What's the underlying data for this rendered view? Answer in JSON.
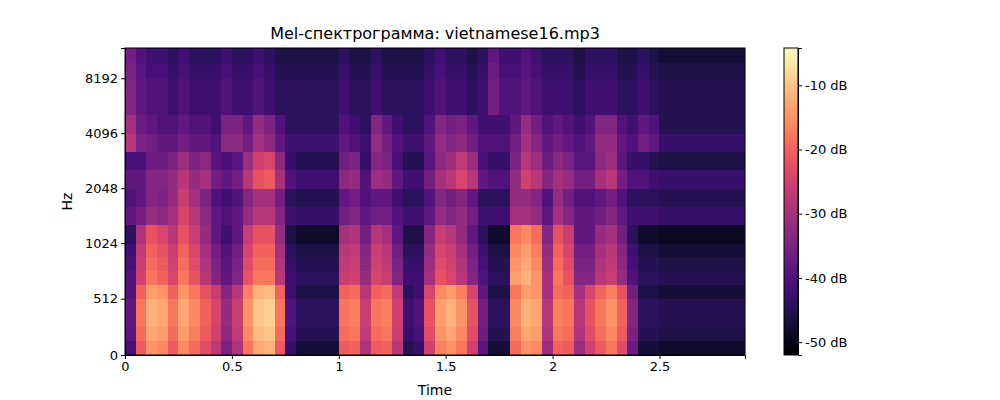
{
  "chart_data": {
    "type": "heatmap",
    "title": "Mel-спектрограмма: vietnamese16.mp3",
    "x_label": "Time",
    "y_label": "Hz",
    "color": "magma",
    "xlim": [
      0,
      2.9
    ],
    "xticks": [
      0,
      0.5,
      1,
      1.5,
      2,
      2.5
    ],
    "ylim": [
      0,
      12000
    ],
    "yticks": [
      0,
      512,
      1024,
      2048,
      4096,
      8192
    ],
    "x_edges": [
      0,
      0.05,
      0.1,
      0.15,
      0.2,
      0.25,
      0.3,
      0.35,
      0.4,
      0.45,
      0.5,
      0.55,
      0.6,
      0.65,
      0.7,
      0.75,
      0.8,
      0.85,
      0.9,
      0.95,
      1,
      1.05,
      1.1,
      1.15,
      1.2,
      1.25,
      1.3,
      1.35,
      1.4,
      1.45,
      1.5,
      1.55,
      1.6,
      1.65,
      1.7,
      1.75,
      1.8,
      1.85,
      1.9,
      1.95,
      2,
      2.05,
      2.1,
      2.15,
      2.2,
      2.25,
      2.3,
      2.35,
      2.4,
      2.45,
      2.5,
      2.55,
      2.6,
      2.65,
      2.7,
      2.75,
      2.8,
      2.85,
      2.9
    ],
    "y_edges": [
      0,
      128,
      256,
      384,
      512,
      640,
      768,
      896,
      1024,
      1290,
      1625,
      2048,
      2580,
      3250,
      4096,
      5160,
      6500,
      8192,
      10000,
      12000
    ],
    "values": [
      [
        -41,
        -21,
        -15,
        -16,
        -21,
        -16,
        -19,
        -23,
        -27,
        -35,
        -29,
        -18,
        -13,
        -12,
        -21,
        -43,
        -47,
        -47,
        -47,
        -47,
        -21,
        -20,
        -29,
        -21,
        -20,
        -28,
        -45,
        -43,
        -25,
        -17,
        -15,
        -18,
        -25,
        -39,
        -47,
        -47,
        -19,
        -15,
        -16,
        -31,
        -20,
        -21,
        -31,
        -25,
        -21,
        -18,
        -23,
        -37,
        -47,
        -47,
        -48,
        -48,
        -48,
        -48,
        -48,
        -48,
        -48,
        -48
      ],
      [
        -39,
        -19,
        -13,
        -14,
        -19,
        -14,
        -17,
        -21,
        -25,
        -33,
        -27,
        -16,
        -11,
        -10,
        -19,
        -41,
        -45,
        -45,
        -45,
        -45,
        -19,
        -18,
        -27,
        -19,
        -18,
        -26,
        -43,
        -41,
        -23,
        -15,
        -13,
        -16,
        -23,
        -37,
        -45,
        -45,
        -17,
        -13,
        -14,
        -29,
        -18,
        -19,
        -29,
        -23,
        -19,
        -16,
        -21,
        -35,
        -45,
        -45,
        -46,
        -46,
        -46,
        -46,
        -46,
        -46,
        -46,
        -46
      ],
      [
        -38,
        -18,
        -12,
        -13,
        -18,
        -13,
        -16,
        -20,
        -24,
        -32,
        -26,
        -15,
        -10,
        -9,
        -18,
        -40,
        -44,
        -44,
        -44,
        -44,
        -18,
        -17,
        -26,
        -18,
        -17,
        -25,
        -42,
        -40,
        -22,
        -14,
        -12,
        -15,
        -22,
        -36,
        -44,
        -44,
        -16,
        -12,
        -13,
        -28,
        -17,
        -18,
        -28,
        -22,
        -18,
        -15,
        -20,
        -34,
        -44,
        -44,
        -45,
        -45,
        -45,
        -45,
        -45,
        -45,
        -45,
        -45
      ],
      [
        -38,
        -18,
        -12,
        -13,
        -18,
        -13,
        -16,
        -20,
        -24,
        -32,
        -26,
        -15,
        -10,
        -9,
        -18,
        -40,
        -44,
        -44,
        -44,
        -44,
        -18,
        -17,
        -26,
        -18,
        -17,
        -25,
        -42,
        -40,
        -22,
        -14,
        -12,
        -15,
        -22,
        -36,
        -44,
        -44,
        -16,
        -12,
        -13,
        -28,
        -17,
        -18,
        -28,
        -22,
        -18,
        -15,
        -20,
        -34,
        -44,
        -44,
        -45,
        -45,
        -45,
        -45,
        -45,
        -45,
        -45,
        -45
      ],
      [
        -40,
        -20,
        -14,
        -15,
        -20,
        -15,
        -18,
        -22,
        -26,
        -34,
        -28,
        -17,
        -12,
        -11,
        -20,
        -42,
        -46,
        -46,
        -46,
        -46,
        -20,
        -19,
        -28,
        -20,
        -19,
        -27,
        -44,
        -42,
        -24,
        -16,
        -14,
        -17,
        -24,
        -38,
        -46,
        -46,
        -18,
        -14,
        -15,
        -30,
        -19,
        -20,
        -30,
        -24,
        -20,
        -17,
        -22,
        -36,
        -46,
        -46,
        -47,
        -47,
        -47,
        -47,
        -47,
        -47,
        -47,
        -47
      ],
      [
        -40,
        -25,
        -18,
        -20,
        -24,
        -18,
        -22,
        -28,
        -34,
        -38,
        -34,
        -22,
        -18,
        -18,
        -28,
        -42,
        -44,
        -44,
        -44,
        -44,
        -26,
        -25,
        -32,
        -24,
        -26,
        -34,
        -42,
        -42,
        -30,
        -22,
        -24,
        -28,
        -34,
        -40,
        -44,
        -44,
        -14,
        -12,
        -15,
        -30,
        -18,
        -22,
        -34,
        -34,
        -28,
        -26,
        -32,
        -40,
        -44,
        -44,
        -45,
        -45,
        -45,
        -45,
        -45,
        -45,
        -45,
        -45
      ],
      [
        -41,
        -26,
        -19,
        -21,
        -25,
        -19,
        -23,
        -29,
        -35,
        -39,
        -35,
        -23,
        -19,
        -19,
        -29,
        -43,
        -45,
        -45,
        -45,
        -45,
        -27,
        -26,
        -33,
        -25,
        -27,
        -35,
        -43,
        -43,
        -31,
        -23,
        -25,
        -29,
        -35,
        -41,
        -45,
        -45,
        -15,
        -13,
        -16,
        -31,
        -19,
        -23,
        -35,
        -35,
        -29,
        -27,
        -33,
        -41,
        -45,
        -45,
        -46,
        -46,
        -46,
        -46,
        -46,
        -46,
        -46,
        -46
      ],
      [
        -42,
        -27,
        -20,
        -22,
        -26,
        -20,
        -24,
        -30,
        -36,
        -40,
        -36,
        -24,
        -20,
        -20,
        -30,
        -44,
        -46,
        -46,
        -46,
        -46,
        -28,
        -27,
        -34,
        -26,
        -28,
        -36,
        -44,
        -44,
        -32,
        -24,
        -26,
        -30,
        -36,
        -42,
        -46,
        -46,
        -16,
        -14,
        -17,
        -32,
        -20,
        -24,
        -36,
        -36,
        -30,
        -28,
        -34,
        -42,
        -46,
        -46,
        -47,
        -47,
        -47,
        -47,
        -47,
        -47,
        -47,
        -47
      ],
      [
        -44,
        -29,
        -22,
        -24,
        -28,
        -22,
        -26,
        -32,
        -38,
        -42,
        -38,
        -26,
        -22,
        -22,
        -32,
        -46,
        -48,
        -48,
        -48,
        -48,
        -30,
        -29,
        -36,
        -28,
        -30,
        -38,
        -46,
        -46,
        -34,
        -26,
        -28,
        -32,
        -38,
        -44,
        -48,
        -48,
        -18,
        -16,
        -19,
        -34,
        -22,
        -26,
        -38,
        -38,
        -32,
        -30,
        -36,
        -44,
        -48,
        -48,
        -49,
        -49,
        -49,
        -49,
        -49,
        -49,
        -49,
        -49
      ],
      [
        -38,
        -36,
        -32,
        -33,
        -30,
        -24,
        -28,
        -33,
        -38,
        -40,
        -38,
        -32,
        -28,
        -28,
        -34,
        -42,
        -43,
        -43,
        -43,
        -43,
        -36,
        -34,
        -38,
        -36,
        -36,
        -40,
        -42,
        -42,
        -38,
        -32,
        -34,
        -32,
        -36,
        -42,
        -42,
        -42,
        -30,
        -30,
        -32,
        -38,
        -30,
        -34,
        -38,
        -38,
        -36,
        -34,
        -38,
        -42,
        -42,
        -42,
        -43,
        -43,
        -43,
        -43,
        -43,
        -43,
        -43,
        -43
      ],
      [
        -40,
        -38,
        -34,
        -35,
        -32,
        -26,
        -30,
        -35,
        -40,
        -42,
        -40,
        -34,
        -30,
        -30,
        -36,
        -44,
        -45,
        -45,
        -45,
        -45,
        -38,
        -36,
        -40,
        -38,
        -38,
        -42,
        -44,
        -44,
        -40,
        -34,
        -36,
        -34,
        -38,
        -44,
        -44,
        -44,
        -32,
        -32,
        -34,
        -40,
        -32,
        -36,
        -40,
        -40,
        -38,
        -36,
        -40,
        -44,
        -44,
        -44,
        -45,
        -45,
        -45,
        -45,
        -45,
        -45,
        -45,
        -45
      ],
      [
        -38,
        -38,
        -34,
        -34,
        -32,
        -28,
        -32,
        -30,
        -36,
        -38,
        -36,
        -28,
        -22,
        -21,
        -30,
        -40,
        -42,
        -42,
        -42,
        -42,
        -33,
        -32,
        -40,
        -31,
        -32,
        -38,
        -42,
        -42,
        -36,
        -30,
        -28,
        -24,
        -28,
        -38,
        -40,
        -40,
        -32,
        -25,
        -28,
        -34,
        -30,
        -32,
        -36,
        -36,
        -30,
        -28,
        -36,
        -40,
        -40,
        -42,
        -43,
        -43,
        -43,
        -43,
        -43,
        -43,
        -43,
        -43
      ],
      [
        -41,
        -41,
        -37,
        -37,
        -35,
        -31,
        -35,
        -33,
        -39,
        -41,
        -39,
        -31,
        -25,
        -24,
        -33,
        -43,
        -45,
        -45,
        -45,
        -45,
        -36,
        -35,
        -43,
        -34,
        -35,
        -41,
        -45,
        -45,
        -39,
        -33,
        -31,
        -27,
        -31,
        -41,
        -43,
        -43,
        -35,
        -28,
        -31,
        -37,
        -33,
        -35,
        -39,
        -39,
        -33,
        -31,
        -39,
        -43,
        -43,
        -45,
        -46,
        -46,
        -46,
        -46,
        -46,
        -46,
        -46,
        -46
      ],
      [
        -28,
        -35,
        -36,
        -38,
        -38,
        -36,
        -38,
        -38,
        -40,
        -33,
        -33,
        -36,
        -30,
        -33,
        -38,
        -42,
        -42,
        -42,
        -42,
        -42,
        -38,
        -40,
        -42,
        -32,
        -36,
        -40,
        -42,
        -42,
        -38,
        -32,
        -34,
        -33,
        -36,
        -40,
        -40,
        -40,
        -36,
        -30,
        -34,
        -38,
        -36,
        -38,
        -40,
        -38,
        -32,
        -32,
        -38,
        -40,
        -36,
        -38,
        -43,
        -43,
        -43,
        -43,
        -43,
        -43,
        -43,
        -43
      ],
      [
        -30,
        -37,
        -38,
        -40,
        -40,
        -38,
        -40,
        -40,
        -42,
        -35,
        -35,
        -38,
        -32,
        -35,
        -40,
        -44,
        -44,
        -44,
        -44,
        -44,
        -40,
        -42,
        -44,
        -34,
        -38,
        -42,
        -44,
        -44,
        -40,
        -34,
        -36,
        -35,
        -38,
        -42,
        -42,
        -42,
        -38,
        -32,
        -36,
        -40,
        -38,
        -40,
        -42,
        -40,
        -34,
        -34,
        -40,
        -42,
        -38,
        -40,
        -45,
        -45,
        -45,
        -45,
        -45,
        -45,
        -45,
        -45
      ],
      [
        -34,
        -38,
        -40,
        -40,
        -42,
        -40,
        -42,
        -42,
        -42,
        -40,
        -42,
        -42,
        -40,
        -42,
        -44,
        -44,
        -44,
        -44,
        -44,
        -44,
        -42,
        -44,
        -44,
        -42,
        -44,
        -44,
        -44,
        -44,
        -42,
        -40,
        -42,
        -42,
        -44,
        -42,
        -36,
        -40,
        -40,
        -38,
        -40,
        -42,
        -42,
        -42,
        -44,
        -42,
        -42,
        -42,
        -44,
        -44,
        -42,
        -44,
        -45,
        -45,
        -45,
        -45,
        -45,
        -45,
        -45,
        -45
      ],
      [
        -34,
        -38,
        -40,
        -40,
        -42,
        -40,
        -42,
        -42,
        -42,
        -40,
        -42,
        -42,
        -40,
        -42,
        -44,
        -44,
        -44,
        -44,
        -44,
        -44,
        -42,
        -44,
        -44,
        -42,
        -44,
        -44,
        -44,
        -44,
        -42,
        -40,
        -42,
        -42,
        -44,
        -42,
        -36,
        -40,
        -40,
        -38,
        -40,
        -42,
        -42,
        -42,
        -44,
        -42,
        -42,
        -42,
        -44,
        -44,
        -42,
        -44,
        -45,
        -45,
        -45,
        -45,
        -45,
        -45,
        -45,
        -45
      ],
      [
        -35,
        -39,
        -41,
        -41,
        -43,
        -41,
        -43,
        -43,
        -43,
        -41,
        -43,
        -43,
        -41,
        -43,
        -45,
        -45,
        -45,
        -45,
        -45,
        -45,
        -43,
        -45,
        -45,
        -43,
        -45,
        -45,
        -45,
        -45,
        -43,
        -41,
        -43,
        -43,
        -45,
        -43,
        -37,
        -41,
        -41,
        -39,
        -41,
        -43,
        -43,
        -43,
        -45,
        -43,
        -43,
        -43,
        -45,
        -45,
        -43,
        -45,
        -46,
        -46,
        -46,
        -46,
        -46,
        -46,
        -46,
        -46
      ],
      [
        -36,
        -40,
        -42,
        -42,
        -44,
        -42,
        -44,
        -44,
        -44,
        -42,
        -44,
        -44,
        -42,
        -44,
        -46,
        -46,
        -46,
        -46,
        -46,
        -46,
        -44,
        -46,
        -46,
        -44,
        -46,
        -46,
        -46,
        -46,
        -44,
        -42,
        -44,
        -44,
        -46,
        -44,
        -38,
        -42,
        -42,
        -40,
        -42,
        -44,
        -44,
        -44,
        -46,
        -44,
        -44,
        -44,
        -46,
        -46,
        -44,
        -46,
        -47,
        -47,
        -47,
        -47,
        -47,
        -47,
        -47,
        -47
      ]
    ],
    "colorbar": {
      "range": [
        -52,
        -4.2
      ],
      "ticks": [
        {
          "value": -10,
          "label": "-10 dB"
        },
        {
          "value": -20,
          "label": "-20 dB"
        },
        {
          "value": -30,
          "label": "-30 dB"
        },
        {
          "value": -40,
          "label": "-40 dB"
        },
        {
          "value": -50,
          "label": "-50 dB"
        }
      ]
    }
  }
}
